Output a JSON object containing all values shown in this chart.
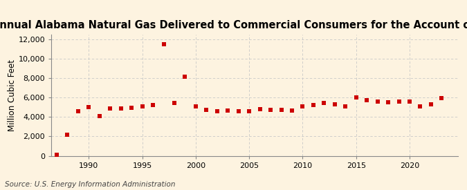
{
  "title": "Annual Alabama Natural Gas Delivered to Commercial Consumers for the Account of Others",
  "ylabel": "Million Cubic Feet",
  "source": "Source: U.S. Energy Information Administration",
  "background_color": "#fdf3e0",
  "plot_background_color": "#fdf3e0",
  "marker_color": "#cc0000",
  "marker": "s",
  "marker_size": 5,
  "years": [
    1987,
    1988,
    1989,
    1990,
    1991,
    1992,
    1993,
    1994,
    1995,
    1996,
    1997,
    1998,
    1999,
    2000,
    2001,
    2002,
    2003,
    2004,
    2005,
    2006,
    2007,
    2008,
    2009,
    2010,
    2011,
    2012,
    2013,
    2014,
    2015,
    2016,
    2017,
    2018,
    2019,
    2020,
    2021,
    2022,
    2023
  ],
  "values": [
    80,
    2200,
    4550,
    5000,
    4100,
    4900,
    4900,
    4950,
    5050,
    5200,
    11450,
    5400,
    8100,
    5050,
    4700,
    4600,
    4650,
    4600,
    4600,
    4800,
    4750,
    4700,
    4650,
    5100,
    5250,
    5400,
    5300,
    5050,
    6000,
    5700,
    5550,
    5500,
    5550,
    5550,
    5100,
    5300,
    5950
  ],
  "ylim": [
    0,
    12500
  ],
  "yticks": [
    0,
    2000,
    4000,
    6000,
    8000,
    10000,
    12000
  ],
  "ytick_labels": [
    "0",
    "2,000",
    "4,000",
    "6,000",
    "8,000",
    "10,000",
    "12,000"
  ],
  "xlim": [
    1986.5,
    2024.5
  ],
  "xticks": [
    1990,
    1995,
    2000,
    2005,
    2010,
    2015,
    2020
  ],
  "grid_color": "#c8c8c8",
  "title_fontsize": 10.5,
  "label_fontsize": 8.5,
  "tick_fontsize": 8,
  "source_fontsize": 7.5
}
